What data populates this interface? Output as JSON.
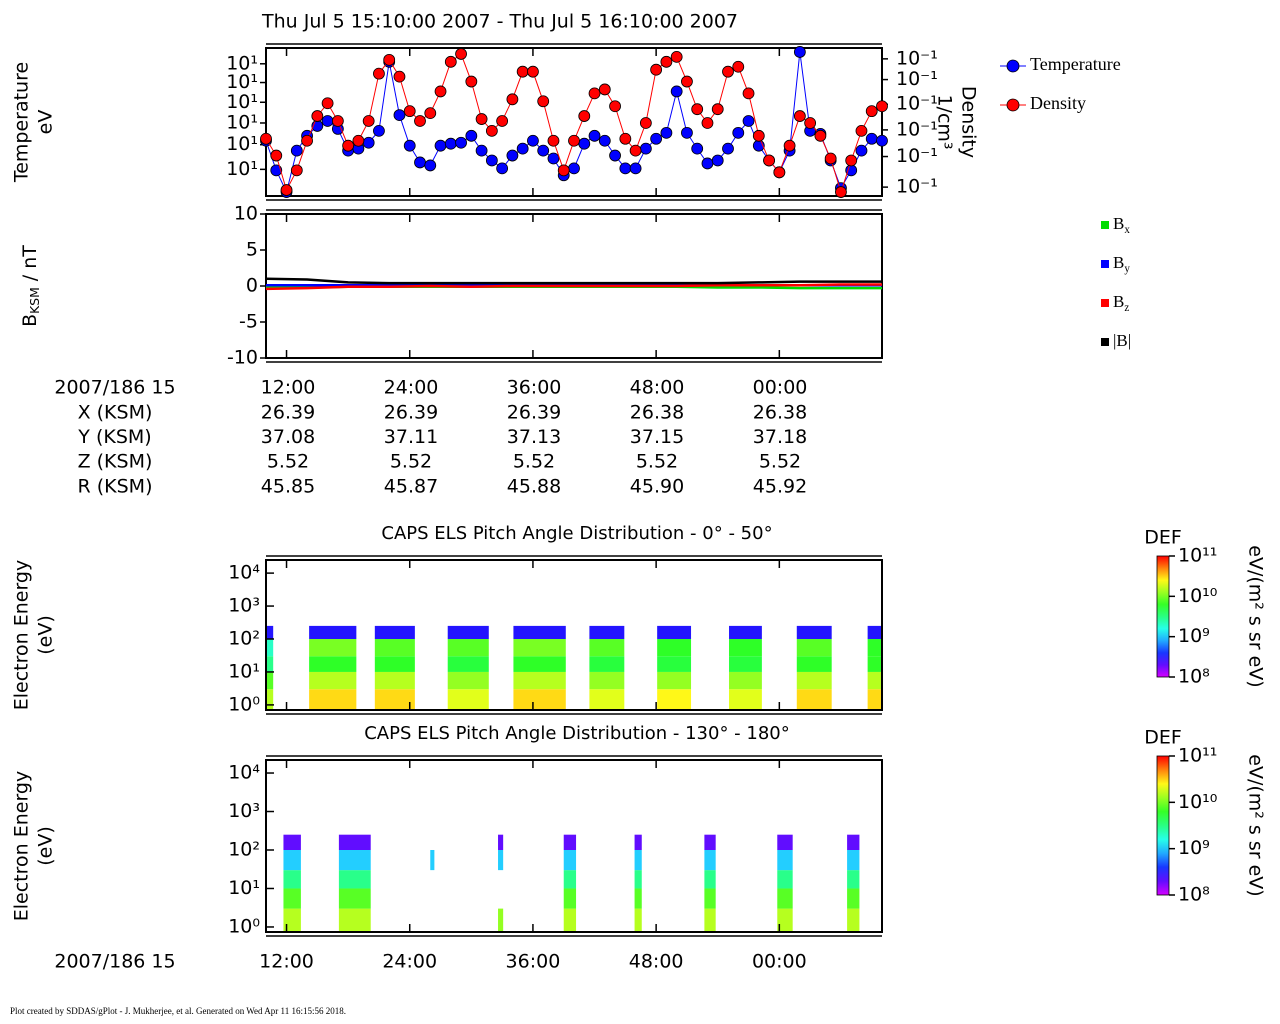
{
  "title": "Thu Jul 5 15:10:00 2007 - Thu Jul 5 16:10:00 2007",
  "footer": "Plot created by SDDAS/gPlot - J. Mukherjee, et al.  Generated on Wed Apr 11 16:15:56 2018.",
  "ephemeris": {
    "header": "2007/186 15",
    "times": [
      "12:00",
      "24:00",
      "36:00",
      "48:00",
      "00:00"
    ],
    "rows": [
      {
        "label": "X (KSM)",
        "values": [
          "26.39",
          "26.39",
          "26.39",
          "26.38",
          "26.38"
        ]
      },
      {
        "label": "Y (KSM)",
        "values": [
          "37.08",
          "37.11",
          "37.13",
          "37.15",
          "37.18"
        ]
      },
      {
        "label": "Z (KSM)",
        "values": [
          "5.52",
          "5.52",
          "5.52",
          "5.52",
          "5.52"
        ]
      },
      {
        "label": "R (KSM)",
        "values": [
          "45.85",
          "45.87",
          "45.88",
          "45.90",
          "45.92"
        ]
      }
    ]
  },
  "chart_data": [
    {
      "type": "line",
      "ylabel": [
        "Temperature",
        "eV"
      ],
      "y2label": [
        "Density",
        "1/cm³"
      ],
      "markers": true,
      "x": [
        10,
        11,
        12,
        13,
        14,
        15,
        16,
        17,
        18,
        19,
        20,
        21,
        22,
        23,
        24,
        25,
        26,
        27,
        28,
        29,
        30,
        31,
        32,
        33,
        34,
        35,
        36,
        37,
        38,
        39,
        40,
        41,
        42,
        43,
        44,
        45,
        46,
        47,
        48,
        49,
        50,
        51,
        52,
        53,
        54,
        55,
        56,
        57,
        58,
        59,
        60,
        61,
        62,
        63,
        64,
        65,
        66,
        67,
        68,
        69,
        70
      ],
      "xlim": [
        10,
        70
      ],
      "xticks": [
        12,
        24,
        36,
        48,
        60
      ],
      "ylim": [
        0,
        150
      ],
      "yticks": [
        {
          "value": 134,
          "label": "10¹"
        },
        {
          "value": 115,
          "label": "10¹"
        },
        {
          "value": 95,
          "label": "10¹"
        },
        {
          "value": 74,
          "label": "10¹"
        },
        {
          "value": 52,
          "label": "10¹"
        },
        {
          "value": 27,
          "label": "10¹"
        }
      ],
      "y2lim": [
        0,
        150
      ],
      "y2ticks": [
        {
          "value": 139,
          "label": "10⁻¹"
        },
        {
          "value": 118,
          "label": "10⁻¹"
        },
        {
          "value": 93,
          "label": "10⁻¹"
        },
        {
          "value": 67,
          "label": "10⁻¹"
        },
        {
          "value": 40,
          "label": "10⁻¹"
        },
        {
          "value": 9,
          "label": "10⁻¹"
        }
      ],
      "series": [
        {
          "name": "Temperature",
          "color": "#0000ff",
          "axis": "y",
          "values": [
            56,
            26,
            4,
            46,
            61,
            71,
            76,
            68,
            46,
            48,
            54,
            66,
            136,
            82,
            51,
            34,
            31,
            51,
            53,
            54,
            61,
            46,
            36,
            28,
            41,
            48,
            56,
            46,
            38,
            21,
            28,
            53,
            61,
            56,
            41,
            28,
            28,
            48,
            58,
            64,
            106,
            64,
            48,
            33,
            36,
            48,
            64,
            76,
            51,
            36,
            24,
            46,
            146,
            66,
            63,
            36,
            8,
            26,
            46,
            58,
            56
          ]
        },
        {
          "name": "Density",
          "color": "#ff0000",
          "axis": "y2",
          "values": [
            58,
            41,
            6,
            26,
            56,
            81,
            94,
            76,
            51,
            56,
            76,
            124,
            138,
            121,
            86,
            76,
            84,
            106,
            136,
            144,
            116,
            78,
            66,
            76,
            98,
            126,
            126,
            96,
            56,
            26,
            56,
            81,
            104,
            108,
            91,
            58,
            46,
            74,
            128,
            136,
            141,
            116,
            88,
            74,
            88,
            126,
            131,
            104,
            61,
            36,
            24,
            51,
            81,
            74,
            61,
            38,
            4,
            36,
            66,
            86,
            91
          ]
        }
      ]
    },
    {
      "type": "line",
      "ylabel": "BKSM / nT",
      "markers": false,
      "x": [
        10,
        14,
        18,
        22,
        26,
        30,
        34,
        38,
        42,
        46,
        50,
        54,
        58,
        62,
        66,
        70
      ],
      "xlim": [
        10,
        70
      ],
      "xticks": [
        12,
        24,
        36,
        48,
        60
      ],
      "ylim": [
        -10,
        10
      ],
      "yticks": [
        10,
        5,
        0,
        -5,
        -10
      ],
      "series": [
        {
          "name": "Bx",
          "color": "#00dd00",
          "values": [
            -0.2,
            -0.2,
            -0.1,
            -0.1,
            -0.1,
            -0.1,
            -0.1,
            -0.1,
            -0.1,
            -0.1,
            -0.1,
            -0.2,
            -0.2,
            -0.3,
            -0.3,
            -0.3
          ]
        },
        {
          "name": "By",
          "color": "#0000ff",
          "values": [
            0.1,
            0.1,
            0.1,
            0.1,
            0.1,
            0.1,
            0.1,
            0.1,
            0.1,
            0.1,
            0.1,
            0.1,
            0.1,
            0.1,
            0.1,
            0.1
          ]
        },
        {
          "name": "Bz",
          "color": "#ff0000",
          "values": [
            -0.4,
            -0.3,
            -0.1,
            -0.1,
            0,
            -0.1,
            0,
            0,
            0,
            0,
            0,
            0.1,
            0.1,
            0.1,
            0.2,
            0.2
          ]
        },
        {
          "name": "|B|",
          "color": "#000000",
          "values": [
            1.0,
            0.9,
            0.5,
            0.4,
            0.4,
            0.4,
            0.4,
            0.4,
            0.4,
            0.4,
            0.4,
            0.4,
            0.5,
            0.6,
            0.6,
            0.6
          ]
        }
      ]
    },
    {
      "type": "heatmap",
      "title": "CAPS ELS Pitch Angle Distribution - 0° - 50°",
      "ylabel": [
        "Electron Energy",
        "(eV)"
      ],
      "log_y": true,
      "ylim": [
        0.7,
        25000
      ],
      "yticks": [
        {
          "value": 1,
          "label": "10⁰"
        },
        {
          "value": 10,
          "label": "10¹"
        },
        {
          "value": 100,
          "label": "10²"
        },
        {
          "value": 1000,
          "label": "10³"
        },
        {
          "value": 10000,
          "label": "10⁴"
        }
      ],
      "xlim": [
        10,
        70
      ],
      "xticks": [
        12,
        24,
        36,
        48,
        60
      ],
      "y_bins": [
        0.7,
        3,
        10,
        30,
        100,
        250
      ],
      "x_start": [
        10,
        14.2,
        20.6,
        27.7,
        34.1,
        41.5,
        48.1,
        55.1,
        61.7,
        68.6
      ],
      "x_end": [
        10.7,
        18.8,
        24.5,
        31.7,
        39.2,
        44.9,
        51.4,
        58.3,
        65.1,
        70
      ],
      "values": [
        [
          15000000000.0,
          8000000000.0,
          3000000000.0,
          2000000000.0,
          300000000.0
        ],
        [
          30000000000.0,
          15000000000.0,
          6000000000.0,
          10000000000.0,
          300000000.0
        ],
        [
          30000000000.0,
          15000000000.0,
          6000000000.0,
          8000000000.0,
          300000000.0
        ],
        [
          20000000000.0,
          12000000000.0,
          5000000000.0,
          8000000000.0,
          300000000.0
        ],
        [
          30000000000.0,
          15000000000.0,
          6000000000.0,
          10000000000.0,
          300000000.0
        ],
        [
          20000000000.0,
          12000000000.0,
          5000000000.0,
          8000000000.0,
          300000000.0
        ],
        [
          25000000000.0,
          12000000000.0,
          5000000000.0,
          6000000000.0,
          300000000.0
        ],
        [
          20000000000.0,
          12000000000.0,
          5000000000.0,
          6000000000.0,
          300000000.0
        ],
        [
          30000000000.0,
          15000000000.0,
          6000000000.0,
          8000000000.0,
          300000000.0
        ],
        [
          30000000000.0,
          15000000000.0,
          6000000000.0,
          6000000000.0,
          300000000.0
        ]
      ],
      "zlim": [
        100000000.0,
        100000000000.0
      ],
      "zticks": [
        {
          "value": 100000000000.0,
          "label": "10¹¹"
        },
        {
          "value": 10000000000.0,
          "label": "10¹⁰"
        },
        {
          "value": 1000000000.0,
          "label": "10⁹"
        },
        {
          "value": 100000000.0,
          "label": "10⁸"
        }
      ],
      "colorbar_label": "DEF",
      "colorbar_units": "eV/(m² s sr eV)"
    },
    {
      "type": "heatmap",
      "title": "CAPS ELS Pitch Angle Distribution - 130° - 180°",
      "ylabel": [
        "Electron Energy",
        "(eV)"
      ],
      "log_y": true,
      "ylim": [
        0.74,
        21800
      ],
      "yticks": [
        {
          "value": 1,
          "label": "10⁰"
        },
        {
          "value": 10,
          "label": "10¹"
        },
        {
          "value": 100,
          "label": "10²"
        },
        {
          "value": 1000,
          "label": "10³"
        },
        {
          "value": 10000,
          "label": "10⁴"
        }
      ],
      "xlim": [
        10,
        70
      ],
      "xlabel": "2007/186 15",
      "xticks": [
        {
          "value": 12,
          "label": "12:00"
        },
        {
          "value": 24,
          "label": "24:00"
        },
        {
          "value": 36,
          "label": "36:00"
        },
        {
          "value": 48,
          "label": "48:00"
        },
        {
          "value": 60,
          "label": "00:00"
        }
      ],
      "y_bins": [
        0.74,
        3,
        10,
        30,
        100,
        250
      ],
      "x_start": [
        11.7,
        17.1,
        26.0,
        32.6,
        39.0,
        45.9,
        52.7,
        59.8,
        66.6
      ],
      "x_end": [
        13.4,
        20.2,
        26.4,
        33.1,
        40.2,
        46.6,
        53.8,
        61.3,
        67.8
      ],
      "values": [
        [
          15000000000.0,
          8000000000.0,
          3000000000.0,
          1000000000.0,
          200000000.0
        ],
        [
          15000000000.0,
          8000000000.0,
          3000000000.0,
          1000000000.0,
          200000000.0
        ],
        [
          null,
          null,
          null,
          1000000000.0,
          null
        ],
        [
          12000000000.0,
          null,
          null,
          1000000000.0,
          200000000.0
        ],
        [
          15000000000.0,
          8000000000.0,
          3000000000.0,
          1000000000.0,
          200000000.0
        ],
        [
          15000000000.0,
          8000000000.0,
          3000000000.0,
          1000000000.0,
          200000000.0
        ],
        [
          15000000000.0,
          8000000000.0,
          3000000000.0,
          1000000000.0,
          200000000.0
        ],
        [
          15000000000.0,
          8000000000.0,
          3000000000.0,
          1000000000.0,
          200000000.0
        ],
        [
          15000000000.0,
          8000000000.0,
          3000000000.0,
          1000000000.0,
          200000000.0
        ]
      ],
      "zlim": [
        100000000.0,
        100000000000.0
      ],
      "zticks": [
        {
          "value": 100000000000.0,
          "label": "10¹¹"
        },
        {
          "value": 10000000000.0,
          "label": "10¹⁰"
        },
        {
          "value": 1000000000.0,
          "label": "10⁹"
        },
        {
          "value": 100000000.0,
          "label": "10⁸"
        }
      ],
      "colorbar_label": "DEF",
      "colorbar_units": "eV/(m² s sr eV)"
    }
  ]
}
